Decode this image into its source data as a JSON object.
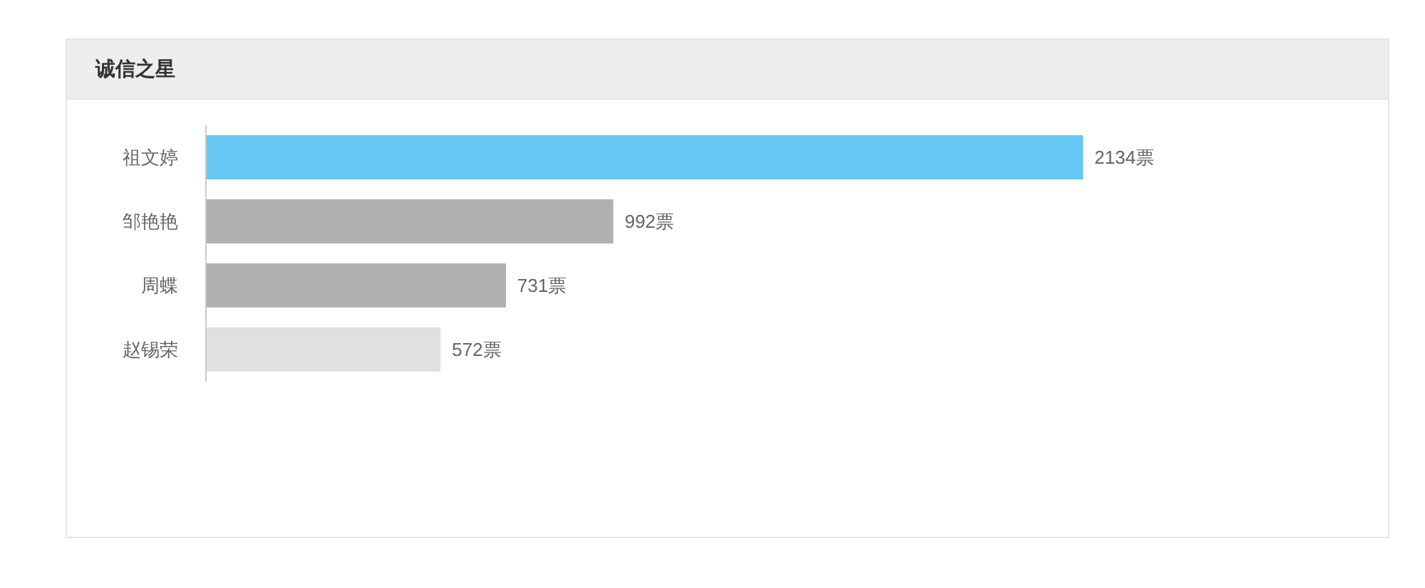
{
  "chart_data": {
    "type": "bar",
    "orientation": "horizontal",
    "title": "诚信之星",
    "categories": [
      "祖文婷",
      "邹艳艳",
      "周蝶",
      "赵锡荣"
    ],
    "values": [
      2134,
      992,
      731,
      572
    ],
    "colors": [
      "#66c7f4",
      "#b0b0b0",
      "#b0b0b0",
      "#e0e0e0"
    ],
    "value_labels": [
      "2134票",
      "992票",
      "731票",
      "572票"
    ],
    "tick_labels": "y"
  }
}
